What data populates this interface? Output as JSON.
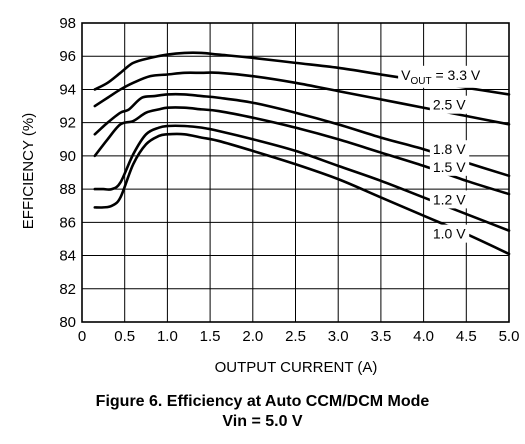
{
  "chart_data": {
    "type": "line",
    "xlabel": "OUTPUT CURRENT (A)",
    "ylabel": "EFFICIENCY (%)",
    "xlim": [
      0,
      5.0
    ],
    "ylim": [
      80,
      98
    ],
    "x_ticks": [
      "0",
      "0.5",
      "1.0",
      "1.5",
      "2.0",
      "2.5",
      "3.0",
      "3.5",
      "4.0",
      "4.5",
      "5.0"
    ],
    "y_ticks": [
      "80",
      "82",
      "84",
      "86",
      "88",
      "90",
      "92",
      "94",
      "96",
      "98"
    ],
    "grid": true,
    "series": [
      {
        "name": "VOUT = 3.3 V",
        "label_main": "V",
        "label_sub": "OUT",
        "label_rest": " = 3.3 V",
        "x": [
          0.15,
          0.3,
          0.45,
          0.6,
          0.8,
          1.0,
          1.2,
          1.4,
          1.6,
          2.0,
          2.5,
          3.0,
          3.5,
          4.0,
          4.5,
          5.0
        ],
        "y": [
          94.0,
          94.4,
          95.0,
          95.6,
          95.9,
          96.1,
          96.2,
          96.2,
          96.1,
          95.9,
          95.6,
          95.3,
          94.9,
          94.5,
          94.1,
          93.7
        ]
      },
      {
        "name": "2.5 V",
        "label_main": "2.5 V",
        "x": [
          0.15,
          0.3,
          0.45,
          0.6,
          0.8,
          1.0,
          1.2,
          1.4,
          1.6,
          2.0,
          2.5,
          3.0,
          3.5,
          4.0,
          4.5,
          5.0
        ],
        "y": [
          93.0,
          93.5,
          94.0,
          94.4,
          94.8,
          94.9,
          95.0,
          95.0,
          95.0,
          94.8,
          94.4,
          93.9,
          93.4,
          92.9,
          92.4,
          91.9
        ]
      },
      {
        "name": "1.8 V",
        "label_main": "1.8 V",
        "x": [
          0.15,
          0.3,
          0.45,
          0.55,
          0.7,
          0.85,
          1.0,
          1.2,
          1.4,
          1.6,
          2.0,
          2.5,
          3.0,
          3.5,
          4.0,
          4.5,
          5.0
        ],
        "y": [
          91.3,
          92.0,
          92.6,
          92.8,
          93.5,
          93.6,
          93.7,
          93.7,
          93.6,
          93.5,
          93.2,
          92.6,
          91.9,
          91.1,
          90.4,
          89.6,
          88.8
        ]
      },
      {
        "name": "1.5 V",
        "label_main": "1.5 V",
        "x": [
          0.15,
          0.3,
          0.45,
          0.6,
          0.75,
          0.9,
          1.0,
          1.2,
          1.4,
          1.6,
          2.0,
          2.5,
          3.0,
          3.5,
          4.0,
          4.5,
          5.0
        ],
        "y": [
          90.0,
          91.0,
          91.9,
          92.1,
          92.6,
          92.8,
          92.9,
          92.9,
          92.8,
          92.7,
          92.3,
          91.7,
          91.0,
          90.2,
          89.4,
          88.5,
          87.7
        ]
      },
      {
        "name": "1.2 V",
        "label_main": "1.2 V",
        "x": [
          0.15,
          0.25,
          0.35,
          0.45,
          0.6,
          0.75,
          0.9,
          1.0,
          1.2,
          1.4,
          1.6,
          2.0,
          2.5,
          3.0,
          3.5,
          4.0,
          4.5,
          5.0
        ],
        "y": [
          88.0,
          88.0,
          88.0,
          88.4,
          90.1,
          91.3,
          91.7,
          91.8,
          91.8,
          91.7,
          91.5,
          91.0,
          90.3,
          89.4,
          88.5,
          87.5,
          86.5,
          85.5
        ]
      },
      {
        "name": "1.0 V",
        "label_main": "1.0 V",
        "x": [
          0.15,
          0.25,
          0.35,
          0.45,
          0.6,
          0.75,
          0.9,
          1.0,
          1.2,
          1.4,
          1.6,
          2.0,
          2.5,
          3.0,
          3.5,
          4.0,
          4.5,
          5.0
        ],
        "y": [
          86.9,
          86.9,
          87.0,
          87.5,
          89.5,
          90.7,
          91.2,
          91.3,
          91.3,
          91.1,
          90.9,
          90.3,
          89.5,
          88.6,
          87.5,
          86.4,
          85.3,
          84.1
        ]
      }
    ]
  },
  "caption": {
    "line1": "Figure 6. Efficiency at Auto CCM/DCM Mode",
    "line2": "Vin = 5.0 V"
  }
}
